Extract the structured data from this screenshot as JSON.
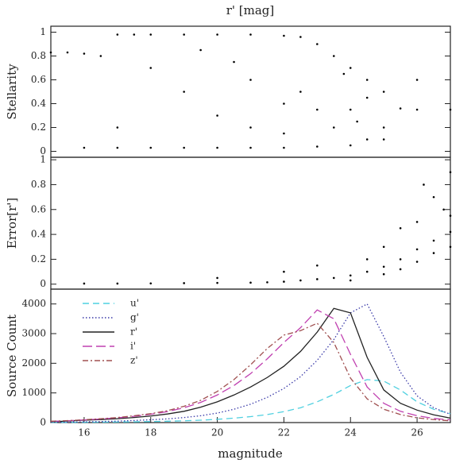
{
  "chart_data": [
    {
      "type": "scatter",
      "title": "r' [mag]",
      "ylabel": "Stellarity",
      "color": "#000000",
      "xlim": [
        15,
        27
      ],
      "ylim": [
        -0.05,
        1.05
      ],
      "yticks": [
        0,
        0.2,
        0.4,
        0.6,
        0.8,
        1
      ],
      "x": [
        15,
        15.5,
        16,
        16.5,
        17,
        17.5,
        18,
        19,
        20,
        21,
        22,
        22.5,
        23,
        23.5,
        24,
        24.5,
        25,
        16,
        17,
        18,
        19,
        20,
        21,
        22,
        23,
        24,
        24.5,
        25,
        23.5,
        23,
        22.5,
        22,
        21,
        20,
        19,
        18,
        17,
        24,
        25.5,
        26,
        27,
        24.5,
        23.8,
        24.2,
        25,
        22,
        21,
        20.5,
        19.5,
        26
      ],
      "y": [
        0.83,
        0.83,
        0.82,
        0.8,
        0.98,
        0.98,
        0.98,
        0.98,
        0.98,
        0.98,
        0.97,
        0.96,
        0.9,
        0.8,
        0.7,
        0.6,
        0.5,
        0.03,
        0.03,
        0.03,
        0.03,
        0.03,
        0.03,
        0.03,
        0.04,
        0.05,
        0.1,
        0.2,
        0.2,
        0.35,
        0.5,
        0.4,
        0.6,
        0.3,
        0.5,
        0.7,
        0.2,
        0.35,
        0.36,
        0.35,
        0.35,
        0.45,
        0.65,
        0.25,
        0.1,
        0.15,
        0.2,
        0.75,
        0.85,
        0.6
      ]
    },
    {
      "type": "scatter",
      "ylabel": "Error[r']",
      "color": "#000000",
      "xlim": [
        15,
        27
      ],
      "ylim": [
        -0.04,
        1.02
      ],
      "yticks": [
        0,
        0.2,
        0.4,
        0.6,
        0.8,
        1
      ],
      "x": [
        16,
        17,
        18,
        19,
        20,
        21,
        21.5,
        22,
        22.5,
        23,
        23.5,
        24,
        24.5,
        25,
        25.5,
        26,
        26.5,
        27,
        24,
        25,
        25.5,
        26,
        26.5,
        27,
        25,
        26,
        26.5,
        27,
        25.5,
        24.5,
        23,
        22,
        26.8,
        26.2,
        27,
        20
      ],
      "y": [
        0.005,
        0.005,
        0.006,
        0.008,
        0.01,
        0.012,
        0.015,
        0.02,
        0.03,
        0.04,
        0.05,
        0.07,
        0.1,
        0.14,
        0.2,
        0.28,
        0.35,
        0.42,
        0.03,
        0.08,
        0.12,
        0.18,
        0.25,
        0.3,
        0.3,
        0.5,
        0.7,
        0.9,
        0.45,
        0.2,
        0.15,
        0.1,
        0.6,
        0.8,
        0.55,
        0.05
      ]
    },
    {
      "type": "line",
      "ylabel": "Source Count",
      "xlabel": "magnitude",
      "xlim": [
        15,
        27
      ],
      "ylim": [
        0,
        4500
      ],
      "xticks": [
        16,
        18,
        20,
        22,
        24,
        26
      ],
      "yticks": [
        0,
        1000,
        2000,
        3000,
        4000
      ],
      "x": [
        15,
        15.5,
        16,
        16.5,
        17,
        17.5,
        18,
        18.5,
        19,
        19.5,
        20,
        20.5,
        21,
        21.5,
        22,
        22.5,
        23,
        23.5,
        24,
        24.5,
        25,
        25.5,
        26,
        26.5,
        27
      ],
      "series": [
        {
          "name": "u'",
          "color": "#4fd0e0",
          "dash": "8,5",
          "values": [
            5,
            8,
            10,
            15,
            20,
            25,
            35,
            45,
            60,
            80,
            110,
            150,
            200,
            270,
            370,
            500,
            700,
            950,
            1250,
            1450,
            1400,
            1100,
            700,
            450,
            300
          ]
        },
        {
          "name": "g'",
          "color": "#3a3aa8",
          "dash": "1.5,2.5",
          "values": [
            10,
            15,
            25,
            35,
            50,
            70,
            95,
            125,
            170,
            230,
            320,
            450,
            620,
            850,
            1150,
            1550,
            2100,
            2800,
            3700,
            4000,
            2900,
            1700,
            900,
            500,
            280
          ]
        },
        {
          "name": "r'",
          "color": "#222222",
          "dash": "none",
          "values": [
            30,
            50,
            80,
            100,
            130,
            170,
            220,
            290,
            380,
            520,
            700,
            930,
            1200,
            1520,
            1900,
            2400,
            3050,
            3850,
            3700,
            2200,
            1100,
            650,
            420,
            260,
            150
          ]
        },
        {
          "name": "i'",
          "color": "#c040b0",
          "dash": "12,5",
          "values": [
            40,
            60,
            90,
            120,
            160,
            210,
            280,
            370,
            500,
            680,
            930,
            1250,
            1650,
            2150,
            2700,
            3200,
            3800,
            3500,
            2300,
            1200,
            650,
            380,
            230,
            140,
            90
          ]
        },
        {
          "name": "z'",
          "color": "#a05050",
          "dash": "7,3,2,3",
          "values": [
            45,
            65,
            95,
            130,
            170,
            230,
            300,
            400,
            550,
            750,
            1050,
            1450,
            1950,
            2500,
            2950,
            3100,
            3350,
            2700,
            1500,
            800,
            450,
            270,
            160,
            100,
            60
          ]
        }
      ]
    }
  ]
}
